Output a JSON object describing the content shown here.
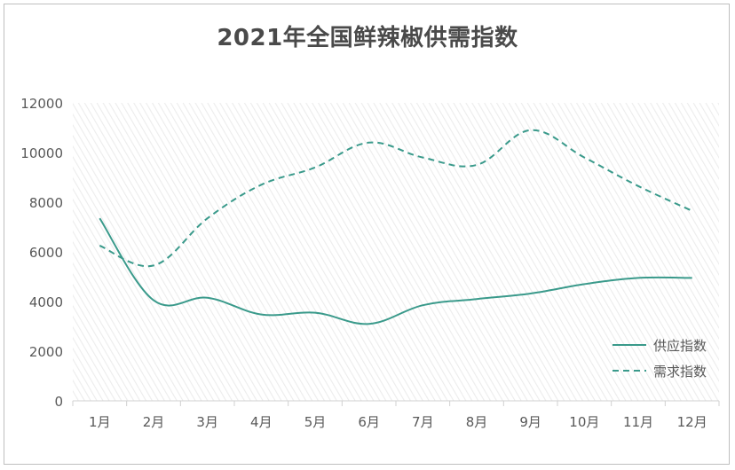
{
  "chart_data": {
    "type": "line",
    "title": "2021年全国鲜辣椒供需指数",
    "categories": [
      "1月",
      "2月",
      "3月",
      "4月",
      "5月",
      "6月",
      "7月",
      "8月",
      "9月",
      "10月",
      "11月",
      "12月"
    ],
    "series": [
      {
        "name": "供应指数",
        "values": [
          7350,
          4050,
          4150,
          3480,
          3550,
          3100,
          3850,
          4100,
          4320,
          4700,
          4950,
          4950
        ],
        "color": "#3a9a8b",
        "style": "solid"
      },
      {
        "name": "需求指数",
        "values": [
          6250,
          5450,
          7350,
          8700,
          9400,
          10400,
          9800,
          9500,
          10900,
          9800,
          8650,
          7650
        ],
        "color": "#3a9a8b",
        "style": "dashed"
      }
    ],
    "yticks": [
      "0",
      "2000",
      "4000",
      "6000",
      "8000",
      "10000",
      "12000"
    ],
    "ylim": [
      0,
      12000
    ],
    "xlabel": "",
    "ylabel": "",
    "legend_position": "right",
    "plot_background": "diagonal-hatch"
  }
}
